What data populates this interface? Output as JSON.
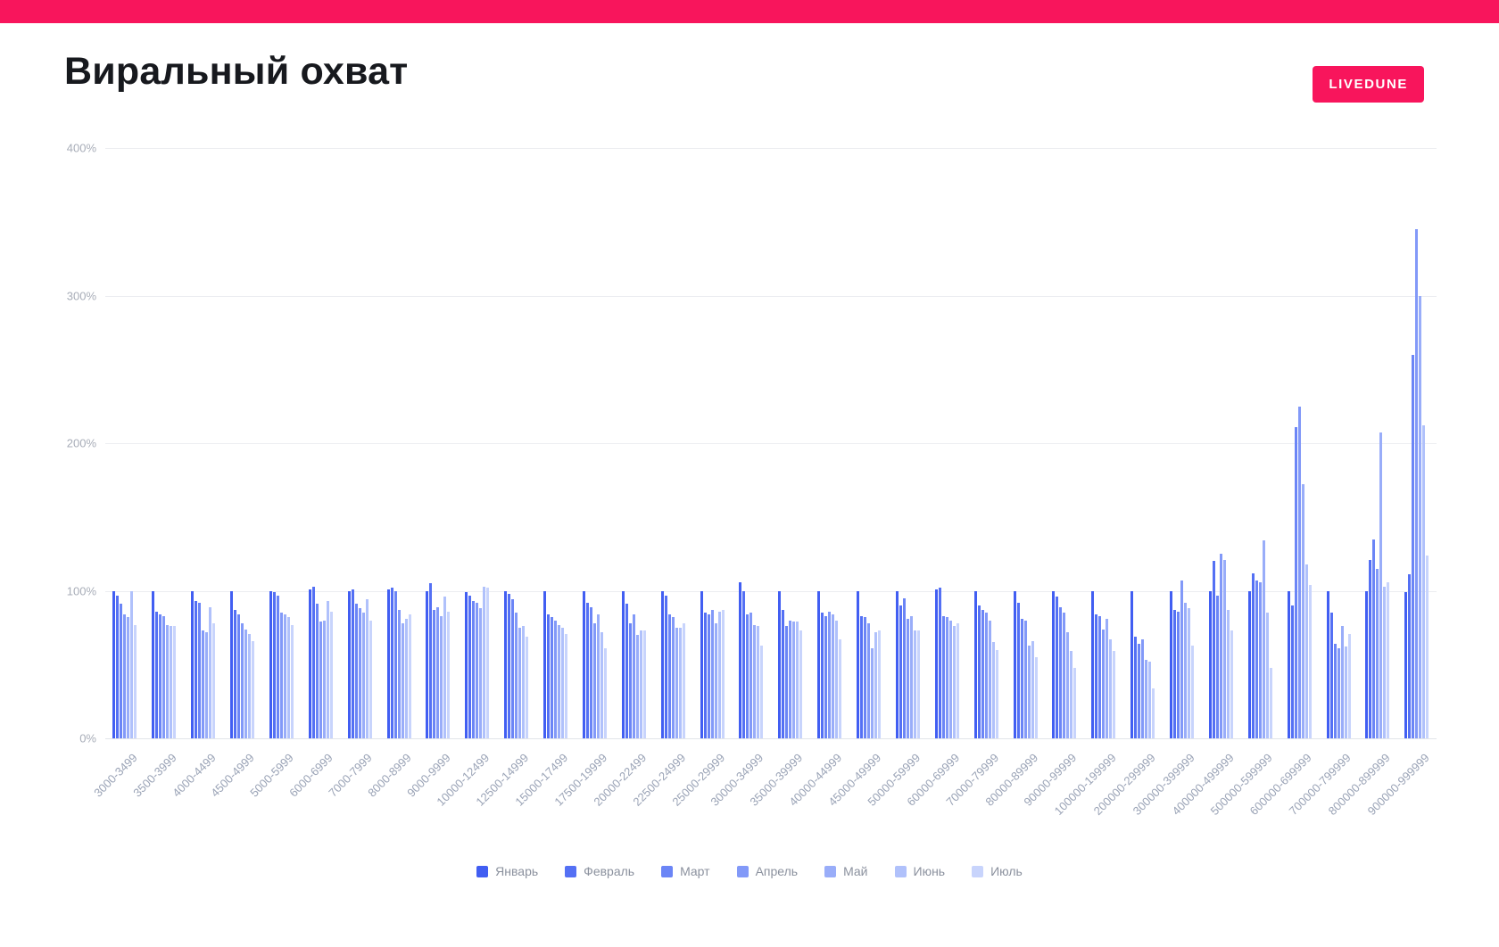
{
  "page": {
    "title": "Виральный охват",
    "brand_badge": "LIVEDUNE",
    "brand_color": "#f8155c",
    "background_color": "#ffffff"
  },
  "chart_data": {
    "type": "bar",
    "title": "Виральный охват",
    "xlabel": "",
    "ylabel": "",
    "ylim": [
      0,
      400
    ],
    "y_ticks": [
      "0%",
      "100%",
      "200%",
      "300%",
      "400%"
    ],
    "grid": "horizontal",
    "legend_position": "bottom",
    "categories": [
      "3000-3499",
      "3500-3999",
      "4000-4499",
      "4500-4999",
      "5000-5999",
      "6000-6999",
      "7000-7999",
      "8000-8999",
      "9000-9999",
      "10000-12499",
      "12500-14999",
      "15000-17499",
      "17500-19999",
      "20000-22499",
      "22500-24999",
      "25000-29999",
      "30000-34999",
      "35000-39999",
      "40000-44999",
      "45000-49999",
      "50000-59999",
      "60000-69999",
      "70000-79999",
      "80000-89999",
      "90000-99999",
      "100000-199999",
      "200000-299999",
      "300000-399999",
      "400000-499999",
      "500000-599999",
      "600000-699999",
      "700000-799999",
      "800000-899999",
      "900000-999999"
    ],
    "series": [
      {
        "name": "Январь",
        "color": "#415ef2",
        "values": [
          100,
          100,
          100,
          100,
          100,
          101,
          100,
          101,
          100,
          99,
          100,
          100,
          100,
          100,
          100,
          100,
          106,
          100,
          100,
          100,
          100,
          101,
          100,
          100,
          100,
          100,
          100,
          100,
          100,
          100,
          100,
          100,
          100,
          99
        ]
      },
      {
        "name": "Февраль",
        "color": "#5470f4",
        "values": [
          97,
          86,
          93,
          87,
          99,
          103,
          101,
          102,
          105,
          97,
          98,
          84,
          92,
          91,
          97,
          85,
          100,
          87,
          85,
          83,
          90,
          102,
          90,
          92,
          96,
          84,
          69,
          87,
          120,
          112,
          90,
          85,
          121,
          111
        ]
      },
      {
        "name": "Март",
        "color": "#6b85f6",
        "values": [
          91,
          84,
          92,
          84,
          97,
          91,
          91,
          100,
          87,
          93,
          94,
          82,
          89,
          78,
          84,
          84,
          84,
          76,
          83,
          82,
          95,
          83,
          87,
          81,
          89,
          83,
          64,
          86,
          97,
          107,
          211,
          64,
          135,
          260
        ]
      },
      {
        "name": "Апрель",
        "color": "#8299f8",
        "values": [
          84,
          83,
          73,
          78,
          85,
          79,
          88,
          87,
          89,
          92,
          85,
          80,
          78,
          84,
          82,
          87,
          85,
          80,
          86,
          78,
          81,
          82,
          85,
          80,
          85,
          74,
          67,
          107,
          125,
          106,
          225,
          61,
          115,
          345
        ]
      },
      {
        "name": "Май",
        "color": "#99adf9",
        "values": [
          82,
          77,
          72,
          74,
          84,
          80,
          85,
          78,
          83,
          88,
          75,
          77,
          84,
          70,
          75,
          78,
          77,
          79,
          84,
          61,
          83,
          80,
          80,
          63,
          72,
          81,
          53,
          92,
          121,
          134,
          172,
          76,
          207,
          300
        ]
      },
      {
        "name": "Июнь",
        "color": "#b0c1fb",
        "values": [
          100,
          76,
          89,
          71,
          82,
          93,
          94,
          81,
          96,
          103,
          76,
          75,
          72,
          73,
          75,
          86,
          76,
          79,
          80,
          72,
          73,
          76,
          65,
          66,
          59,
          67,
          52,
          88,
          87,
          85,
          118,
          62,
          103,
          212
        ]
      },
      {
        "name": "Июль",
        "color": "#c8d4fc",
        "values": [
          77,
          76,
          78,
          66,
          77,
          86,
          80,
          84,
          86,
          102,
          69,
          71,
          61,
          73,
          78,
          87,
          63,
          73,
          67,
          73,
          73,
          78,
          60,
          55,
          48,
          59,
          34,
          63,
          73,
          48,
          104,
          71,
          106,
          124
        ]
      }
    ]
  }
}
